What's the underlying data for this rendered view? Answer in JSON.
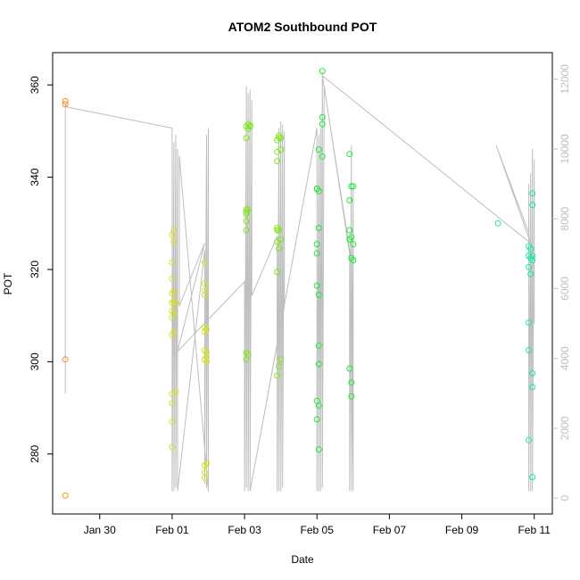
{
  "chart_data": {
    "type": "scatter",
    "title": "ATOM2 Southbound POT",
    "xlabel": "Date",
    "ylabel": "POT",
    "x_ticks": [
      "Jan 30",
      "Feb 01",
      "Feb 03",
      "Feb 05",
      "Feb 07",
      "Feb 09",
      "Feb 11"
    ],
    "x_tick_days": [
      30,
      32,
      34,
      36,
      38,
      40,
      42
    ],
    "xlim_days": [
      28.7,
      42.5
    ],
    "ylim": [
      267,
      367
    ],
    "y_ticks": [
      280,
      300,
      320,
      340,
      360
    ],
    "y2_ticks": [
      0,
      2000,
      4000,
      6000,
      8000,
      10000,
      12000
    ],
    "y2lim": [
      -455,
      12760
    ],
    "grid": false,
    "colors": {
      "line": "#bebebe",
      "right_axis": "#bebebe",
      "groups": [
        "#ff8c1a",
        "#d8e41a",
        "#7ee81a",
        "#1ee83a",
        "#1ae8a4"
      ]
    },
    "series": [
      {
        "group": 0,
        "points": [
          [
            29.05,
            356.5
          ],
          [
            29.05,
            355.8
          ],
          [
            29.05,
            300.5
          ],
          [
            29.05,
            271.0
          ]
        ]
      },
      {
        "group": 1,
        "points": [
          [
            32.0,
            327.5
          ],
          [
            32.0,
            321.5
          ],
          [
            32.0,
            318.0
          ],
          [
            32.0,
            314.8
          ],
          [
            32.0,
            312.8
          ],
          [
            32.0,
            311.0
          ],
          [
            32.0,
            309.5
          ],
          [
            32.0,
            305.8
          ],
          [
            32.0,
            293.0
          ],
          [
            32.0,
            291.0
          ],
          [
            32.0,
            287.0
          ],
          [
            32.0,
            281.5
          ],
          [
            32.05,
            328.5
          ],
          [
            32.05,
            326.0
          ],
          [
            32.05,
            315.2
          ],
          [
            32.05,
            313.0
          ],
          [
            32.05,
            310.5
          ],
          [
            32.05,
            306.5
          ],
          [
            32.1,
            312.8
          ],
          [
            32.1,
            293.5
          ],
          [
            32.9,
            321.5
          ],
          [
            32.9,
            317.0
          ],
          [
            32.9,
            315.5
          ],
          [
            32.9,
            314.5
          ],
          [
            32.9,
            307.5
          ],
          [
            32.9,
            306.5
          ],
          [
            32.9,
            302.5
          ],
          [
            32.9,
            300.5
          ],
          [
            32.9,
            277.5
          ],
          [
            32.9,
            276.0
          ],
          [
            32.9,
            274.8
          ],
          [
            32.95,
            307.0
          ],
          [
            32.95,
            302.0
          ],
          [
            32.95,
            301.0
          ],
          [
            32.95,
            300.0
          ],
          [
            32.95,
            278.0
          ]
        ]
      },
      {
        "group": 2,
        "points": [
          [
            34.05,
            351.0
          ],
          [
            34.05,
            348.5
          ],
          [
            34.05,
            333.0
          ],
          [
            34.05,
            332.5
          ],
          [
            34.05,
            332.0
          ],
          [
            34.05,
            330.5
          ],
          [
            34.05,
            328.5
          ],
          [
            34.05,
            302.0
          ],
          [
            34.05,
            300.5
          ],
          [
            34.1,
            351.5
          ],
          [
            34.1,
            350.5
          ],
          [
            34.1,
            333.0
          ],
          [
            34.1,
            301.5
          ],
          [
            34.15,
            351.2
          ],
          [
            34.15,
            351.0
          ],
          [
            34.9,
            348.0
          ],
          [
            34.9,
            345.5
          ],
          [
            34.9,
            343.5
          ],
          [
            34.9,
            329.0
          ],
          [
            34.9,
            328.5
          ],
          [
            34.9,
            326.0
          ],
          [
            34.9,
            319.5
          ],
          [
            34.9,
            297.0
          ],
          [
            34.95,
            349.0
          ],
          [
            34.95,
            348.5
          ],
          [
            34.95,
            328.5
          ],
          [
            34.95,
            324.5
          ],
          [
            34.95,
            299.0
          ],
          [
            35.0,
            348.5
          ],
          [
            35.0,
            346.0
          ],
          [
            35.0,
            326.5
          ],
          [
            35.0,
            300.5
          ]
        ]
      },
      {
        "group": 3,
        "points": [
          [
            36.0,
            337.5
          ],
          [
            36.0,
            337.5
          ],
          [
            36.0,
            325.5
          ],
          [
            36.0,
            323.5
          ],
          [
            36.0,
            316.5
          ],
          [
            36.0,
            291.5
          ],
          [
            36.0,
            287.5
          ],
          [
            36.05,
            346.0
          ],
          [
            36.05,
            337.0
          ],
          [
            36.05,
            329.0
          ],
          [
            36.05,
            314.5
          ],
          [
            36.05,
            303.5
          ],
          [
            36.05,
            299.5
          ],
          [
            36.05,
            290.5
          ],
          [
            36.05,
            281.0
          ],
          [
            36.15,
            363.0
          ],
          [
            36.15,
            353.0
          ],
          [
            36.15,
            351.5
          ],
          [
            36.15,
            344.5
          ],
          [
            36.9,
            345.0
          ],
          [
            36.9,
            335.0
          ],
          [
            36.9,
            328.5
          ],
          [
            36.9,
            326.5
          ],
          [
            36.9,
            298.5
          ],
          [
            36.95,
            338.0
          ],
          [
            36.95,
            327.0
          ],
          [
            36.95,
            322.5
          ],
          [
            36.95,
            295.5
          ],
          [
            36.95,
            292.5
          ],
          [
            37.0,
            338.0
          ],
          [
            37.0,
            325.5
          ],
          [
            37.0,
            322.0
          ]
        ]
      },
      {
        "group": 4,
        "points": [
          [
            41.0,
            330.0
          ],
          [
            41.85,
            325.0
          ],
          [
            41.85,
            323.0
          ],
          [
            41.85,
            320.5
          ],
          [
            41.85,
            308.5
          ],
          [
            41.85,
            302.5
          ],
          [
            41.85,
            283.0
          ],
          [
            41.9,
            324.5
          ],
          [
            41.9,
            322.5
          ],
          [
            41.9,
            319.0
          ],
          [
            41.95,
            323.0
          ],
          [
            41.95,
            322.0
          ],
          [
            41.95,
            336.5
          ],
          [
            41.95,
            334.0
          ],
          [
            41.95,
            297.5
          ],
          [
            41.95,
            294.5
          ],
          [
            41.95,
            275.0
          ]
        ]
      }
    ],
    "trace": [
      [
        29.05,
        3000
      ],
      [
        29.05,
        11300
      ],
      [
        29.1,
        11200
      ],
      [
        32.0,
        10600
      ],
      [
        32.0,
        200
      ],
      [
        32.05,
        10200
      ],
      [
        32.05,
        200
      ],
      [
        32.1,
        10400
      ],
      [
        32.1,
        300
      ],
      [
        32.15,
        10000
      ],
      [
        32.15,
        200
      ],
      [
        32.9,
        7100
      ],
      [
        32.9,
        400
      ],
      [
        32.95,
        10400
      ],
      [
        32.95,
        300
      ],
      [
        33.0,
        10600
      ],
      [
        33.0,
        200
      ],
      [
        32.2,
        9800
      ],
      [
        32.2,
        5500
      ],
      [
        32.9,
        7300
      ],
      [
        32.15,
        4200
      ],
      [
        34.0,
        6200
      ],
      [
        34.0,
        200
      ],
      [
        34.05,
        11800
      ],
      [
        34.05,
        300
      ],
      [
        34.1,
        11600
      ],
      [
        34.1,
        200
      ],
      [
        34.15,
        11700
      ],
      [
        34.15,
        200
      ],
      [
        34.2,
        11400
      ],
      [
        34.2,
        5800
      ],
      [
        34.9,
        7500
      ],
      [
        34.9,
        200
      ],
      [
        34.95,
        10600
      ],
      [
        34.95,
        200
      ],
      [
        35.0,
        10800
      ],
      [
        35.0,
        200
      ],
      [
        35.05,
        10700
      ],
      [
        35.05,
        300
      ],
      [
        35.1,
        10500
      ],
      [
        35.1,
        5500
      ],
      [
        34.15,
        200
      ],
      [
        36.0,
        10600
      ],
      [
        36.0,
        200
      ],
      [
        36.05,
        10400
      ],
      [
        36.05,
        200
      ],
      [
        36.1,
        10600
      ],
      [
        36.1,
        200
      ],
      [
        36.15,
        12200
      ],
      [
        36.15,
        300
      ],
      [
        36.2,
        11800
      ],
      [
        36.9,
        7000
      ],
      [
        36.9,
        200
      ],
      [
        36.95,
        10100
      ],
      [
        36.95,
        200
      ],
      [
        37.0,
        8900
      ],
      [
        37.0,
        200
      ],
      [
        36.95,
        6800
      ],
      [
        36.15,
        12100
      ],
      [
        41.9,
        7300
      ],
      [
        40.95,
        10100
      ],
      [
        41.85,
        7600
      ],
      [
        41.85,
        9000
      ],
      [
        41.85,
        200
      ],
      [
        41.9,
        9300
      ],
      [
        41.9,
        200
      ],
      [
        41.95,
        10000
      ],
      [
        41.95,
        200
      ],
      [
        42.0,
        9700
      ],
      [
        42.0,
        5000
      ]
    ]
  }
}
